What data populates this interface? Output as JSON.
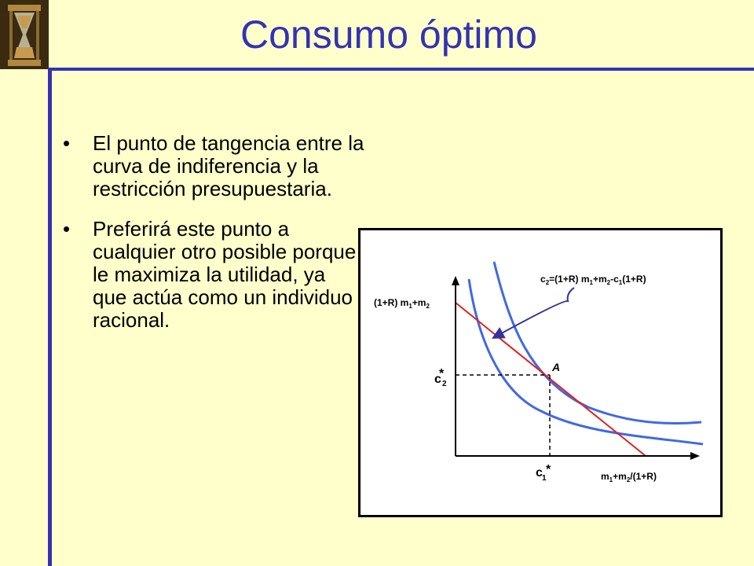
{
  "slide": {
    "title": "Consumo óptimo",
    "bullets": [
      {
        "marker": "•",
        "text": "El punto de tangencia entre la curva de indiferencia y la restricción presupuestaria."
      },
      {
        "marker": "•",
        "text": "Preferirá este punto a cualquier otro posible porque le maximiza la utilidad, ya que actúa como un individuo racional."
      }
    ]
  },
  "graph": {
    "budget_label": {
      "c": "c",
      "s2": "2",
      "eq": "=(1+R) m",
      "s1": "1",
      "plus": "+m",
      "s2b": "2",
      "minus": "-c",
      "s1b": "1",
      "tail": "(1+R)"
    },
    "y_intercept_label": {
      "a": "(1+R) m",
      "s1": "1",
      "b": "+m",
      "s2": "2"
    },
    "x_intercept_label": {
      "a": "m",
      "s1": "1",
      "b": "+m",
      "s2": "2",
      "c": "/(1+R)"
    },
    "point_label": "A",
    "c2_star": {
      "c": "c",
      "star": "*",
      "sub": "2"
    },
    "c1_star": {
      "c": "c",
      "star": "*",
      "sub": "1"
    }
  },
  "colors": {
    "background": "#FFFFCC",
    "accent": "#3333B2",
    "curve": "#4169E1",
    "budget_line": "#E02020",
    "arrow": "#333399"
  }
}
